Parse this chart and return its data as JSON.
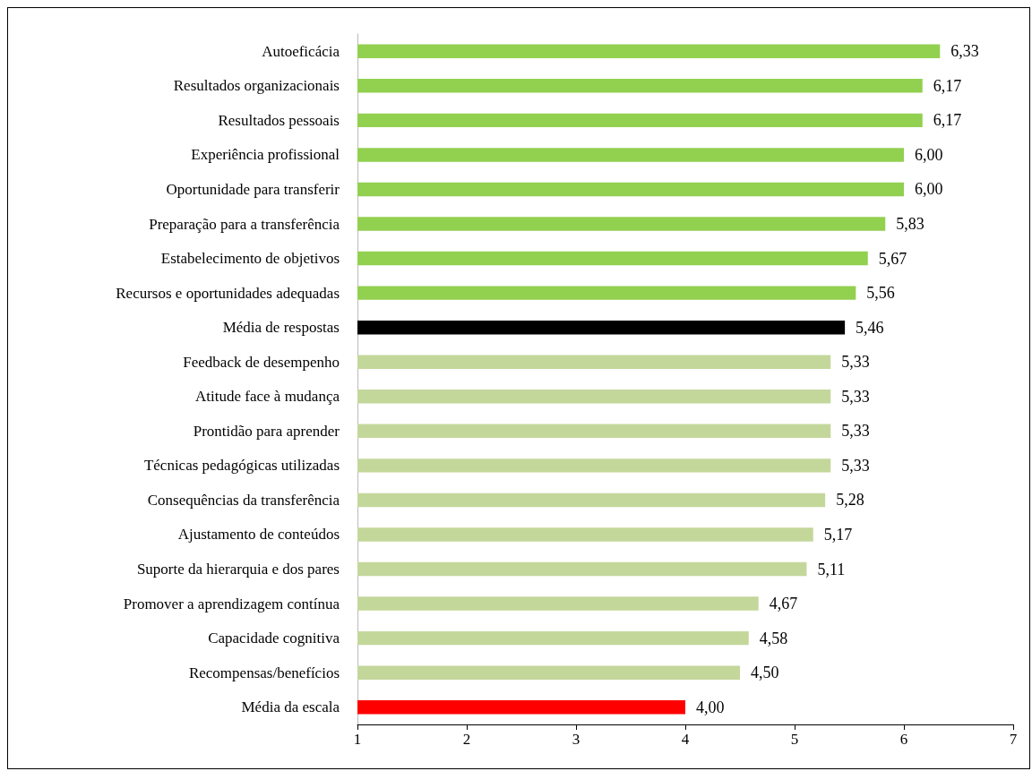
{
  "chart_data": {
    "type": "bar",
    "orientation": "horizontal",
    "categories": [
      "Autoeficácia",
      "Resultados organizacionais",
      "Resultados pessoais",
      "Experiência profissional",
      "Oportunidade para transferir",
      "Preparação para a transferência",
      "Estabelecimento de objetivos",
      "Recursos e oportunidades adequadas",
      "Média de respostas",
      "Feedback de desempenho",
      "Atitude face à mudança",
      "Prontidão para aprender",
      "Técnicas pedagógicas utilizadas",
      "Consequências da transferência",
      "Ajustamento de conteúdos",
      "Suporte da hierarquia e dos pares",
      "Promover a aprendizagem contínua",
      "Capacidade cognitiva",
      "Recompensas/benefícios",
      "Média da escala"
    ],
    "values": [
      6.33,
      6.17,
      6.17,
      6.0,
      6.0,
      5.83,
      5.67,
      5.56,
      5.46,
      5.33,
      5.33,
      5.33,
      5.33,
      5.28,
      5.17,
      5.11,
      4.67,
      4.58,
      4.5,
      4.0
    ],
    "value_labels": [
      "6,33",
      "6,17",
      "6,17",
      "6,00",
      "6,00",
      "5,83",
      "5,67",
      "5,56",
      "5,46",
      "5,33",
      "5,33",
      "5,33",
      "5,33",
      "5,28",
      "5,17",
      "5,11",
      "4,67",
      "4,58",
      "4,50",
      "4,00"
    ],
    "colors": [
      "#92d050",
      "#92d050",
      "#92d050",
      "#92d050",
      "#92d050",
      "#92d050",
      "#92d050",
      "#92d050",
      "#000000",
      "#c4d79b",
      "#c4d79b",
      "#c4d79b",
      "#c4d79b",
      "#c4d79b",
      "#c4d79b",
      "#c4d79b",
      "#c4d79b",
      "#c4d79b",
      "#c4d79b",
      "#ff0000"
    ],
    "xlim": [
      1,
      7
    ],
    "xticks": [
      1,
      2,
      3,
      4,
      5,
      6,
      7
    ]
  }
}
